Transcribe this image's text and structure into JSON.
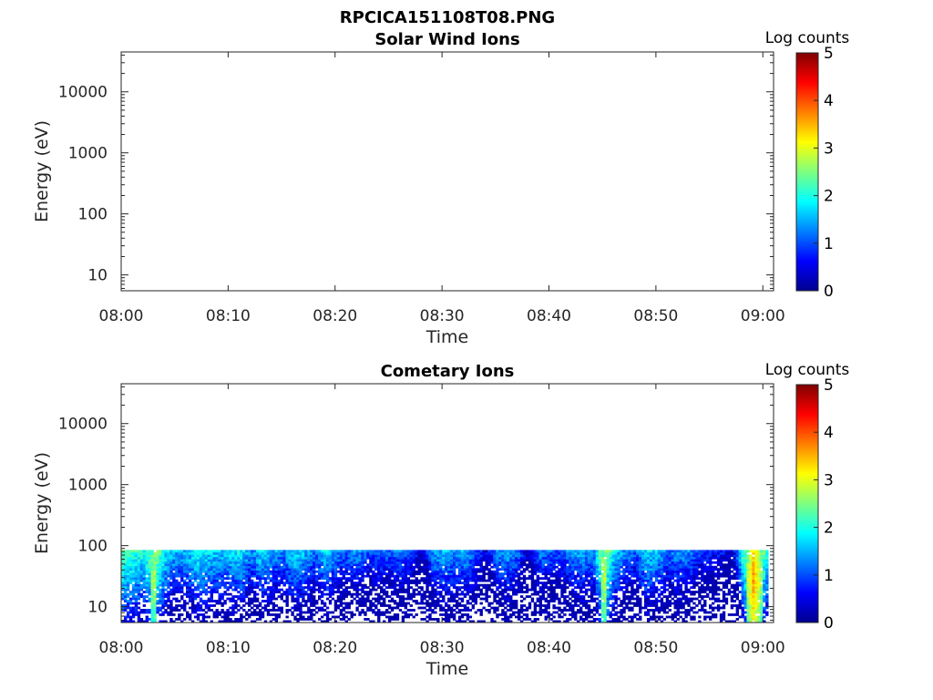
{
  "figure": {
    "title": "RPCICA151108T08.PNG"
  },
  "chart_data": [
    {
      "type": "heatmap",
      "title": "Solar Wind Ions",
      "xlabel": "Time",
      "ylabel": "Energy (eV)",
      "x_ticks": [
        "08:00",
        "08:10",
        "08:20",
        "08:30",
        "08:40",
        "08:50",
        "09:00"
      ],
      "xlim_minutes": [
        0,
        61
      ],
      "y_ticks": [
        "10",
        "100",
        "1000",
        "10000"
      ],
      "y_scale": "log",
      "ylim": [
        5.5,
        45000
      ],
      "colorbar": {
        "label": "Log counts",
        "ticks": [
          "0",
          "1",
          "2",
          "3",
          "4",
          "5"
        ],
        "range": [
          0,
          5
        ],
        "colormap": "jet"
      },
      "values": []
    },
    {
      "type": "heatmap",
      "title": "Cometary Ions",
      "xlabel": "Time",
      "ylabel": "Energy (eV)",
      "x_ticks": [
        "08:00",
        "08:10",
        "08:20",
        "08:30",
        "08:40",
        "08:50",
        "09:00"
      ],
      "xlim_minutes": [
        0,
        61
      ],
      "y_ticks": [
        "10",
        "100",
        "1000",
        "10000"
      ],
      "y_scale": "log",
      "ylim": [
        5.5,
        45000
      ],
      "colorbar": {
        "label": "Log counts",
        "ticks": [
          "0",
          "1",
          "2",
          "3",
          "4",
          "5"
        ],
        "range": [
          0,
          5
        ],
        "colormap": "jet"
      },
      "energy_range_eV": [
        5.5,
        85
      ],
      "time_profile_log_counts_at_top": [
        [
          0,
          2.4
        ],
        [
          1,
          2.2
        ],
        [
          2,
          2.0
        ],
        [
          3,
          2.8
        ],
        [
          4,
          1.9
        ],
        [
          5,
          1.5
        ],
        [
          6,
          1.6
        ],
        [
          7,
          2.0
        ],
        [
          8,
          1.8
        ],
        [
          9,
          1.6
        ],
        [
          10,
          1.7
        ],
        [
          11,
          1.9
        ],
        [
          12,
          1.3
        ],
        [
          13,
          1.8
        ],
        [
          14,
          1.5
        ],
        [
          15,
          1.3
        ],
        [
          16,
          1.8
        ],
        [
          17,
          1.6
        ],
        [
          18,
          1.2
        ],
        [
          19,
          1.8
        ],
        [
          20,
          1.3
        ],
        [
          21,
          1.2
        ],
        [
          22,
          1.4
        ],
        [
          23,
          1.0
        ],
        [
          24,
          1.2
        ],
        [
          25,
          1.1
        ],
        [
          26,
          1.2
        ],
        [
          27,
          1.0
        ],
        [
          28,
          0.4
        ],
        [
          29,
          1.3
        ],
        [
          30,
          1.6
        ],
        [
          31,
          1.4
        ],
        [
          32,
          1.5
        ],
        [
          33,
          1.2
        ],
        [
          34,
          0.5
        ],
        [
          35,
          1.3
        ],
        [
          36,
          1.5
        ],
        [
          37,
          1.2
        ],
        [
          38,
          0.3
        ],
        [
          39,
          1.3
        ],
        [
          40,
          1.1
        ],
        [
          41,
          1.0
        ],
        [
          42,
          1.4
        ],
        [
          43,
          1.5
        ],
        [
          44,
          1.3
        ],
        [
          45,
          2.9
        ],
        [
          46,
          1.8
        ],
        [
          47,
          1.3
        ],
        [
          48,
          1.1
        ],
        [
          49,
          1.8
        ],
        [
          50,
          1.6
        ],
        [
          51,
          1.2
        ],
        [
          52,
          1.4
        ],
        [
          53,
          1.3
        ],
        [
          54,
          0.9
        ],
        [
          55,
          0.9
        ],
        [
          56,
          0.7
        ],
        [
          57,
          0.3
        ],
        [
          58,
          2.2
        ],
        [
          59,
          3.6
        ],
        [
          60,
          2.4
        ]
      ]
    }
  ]
}
